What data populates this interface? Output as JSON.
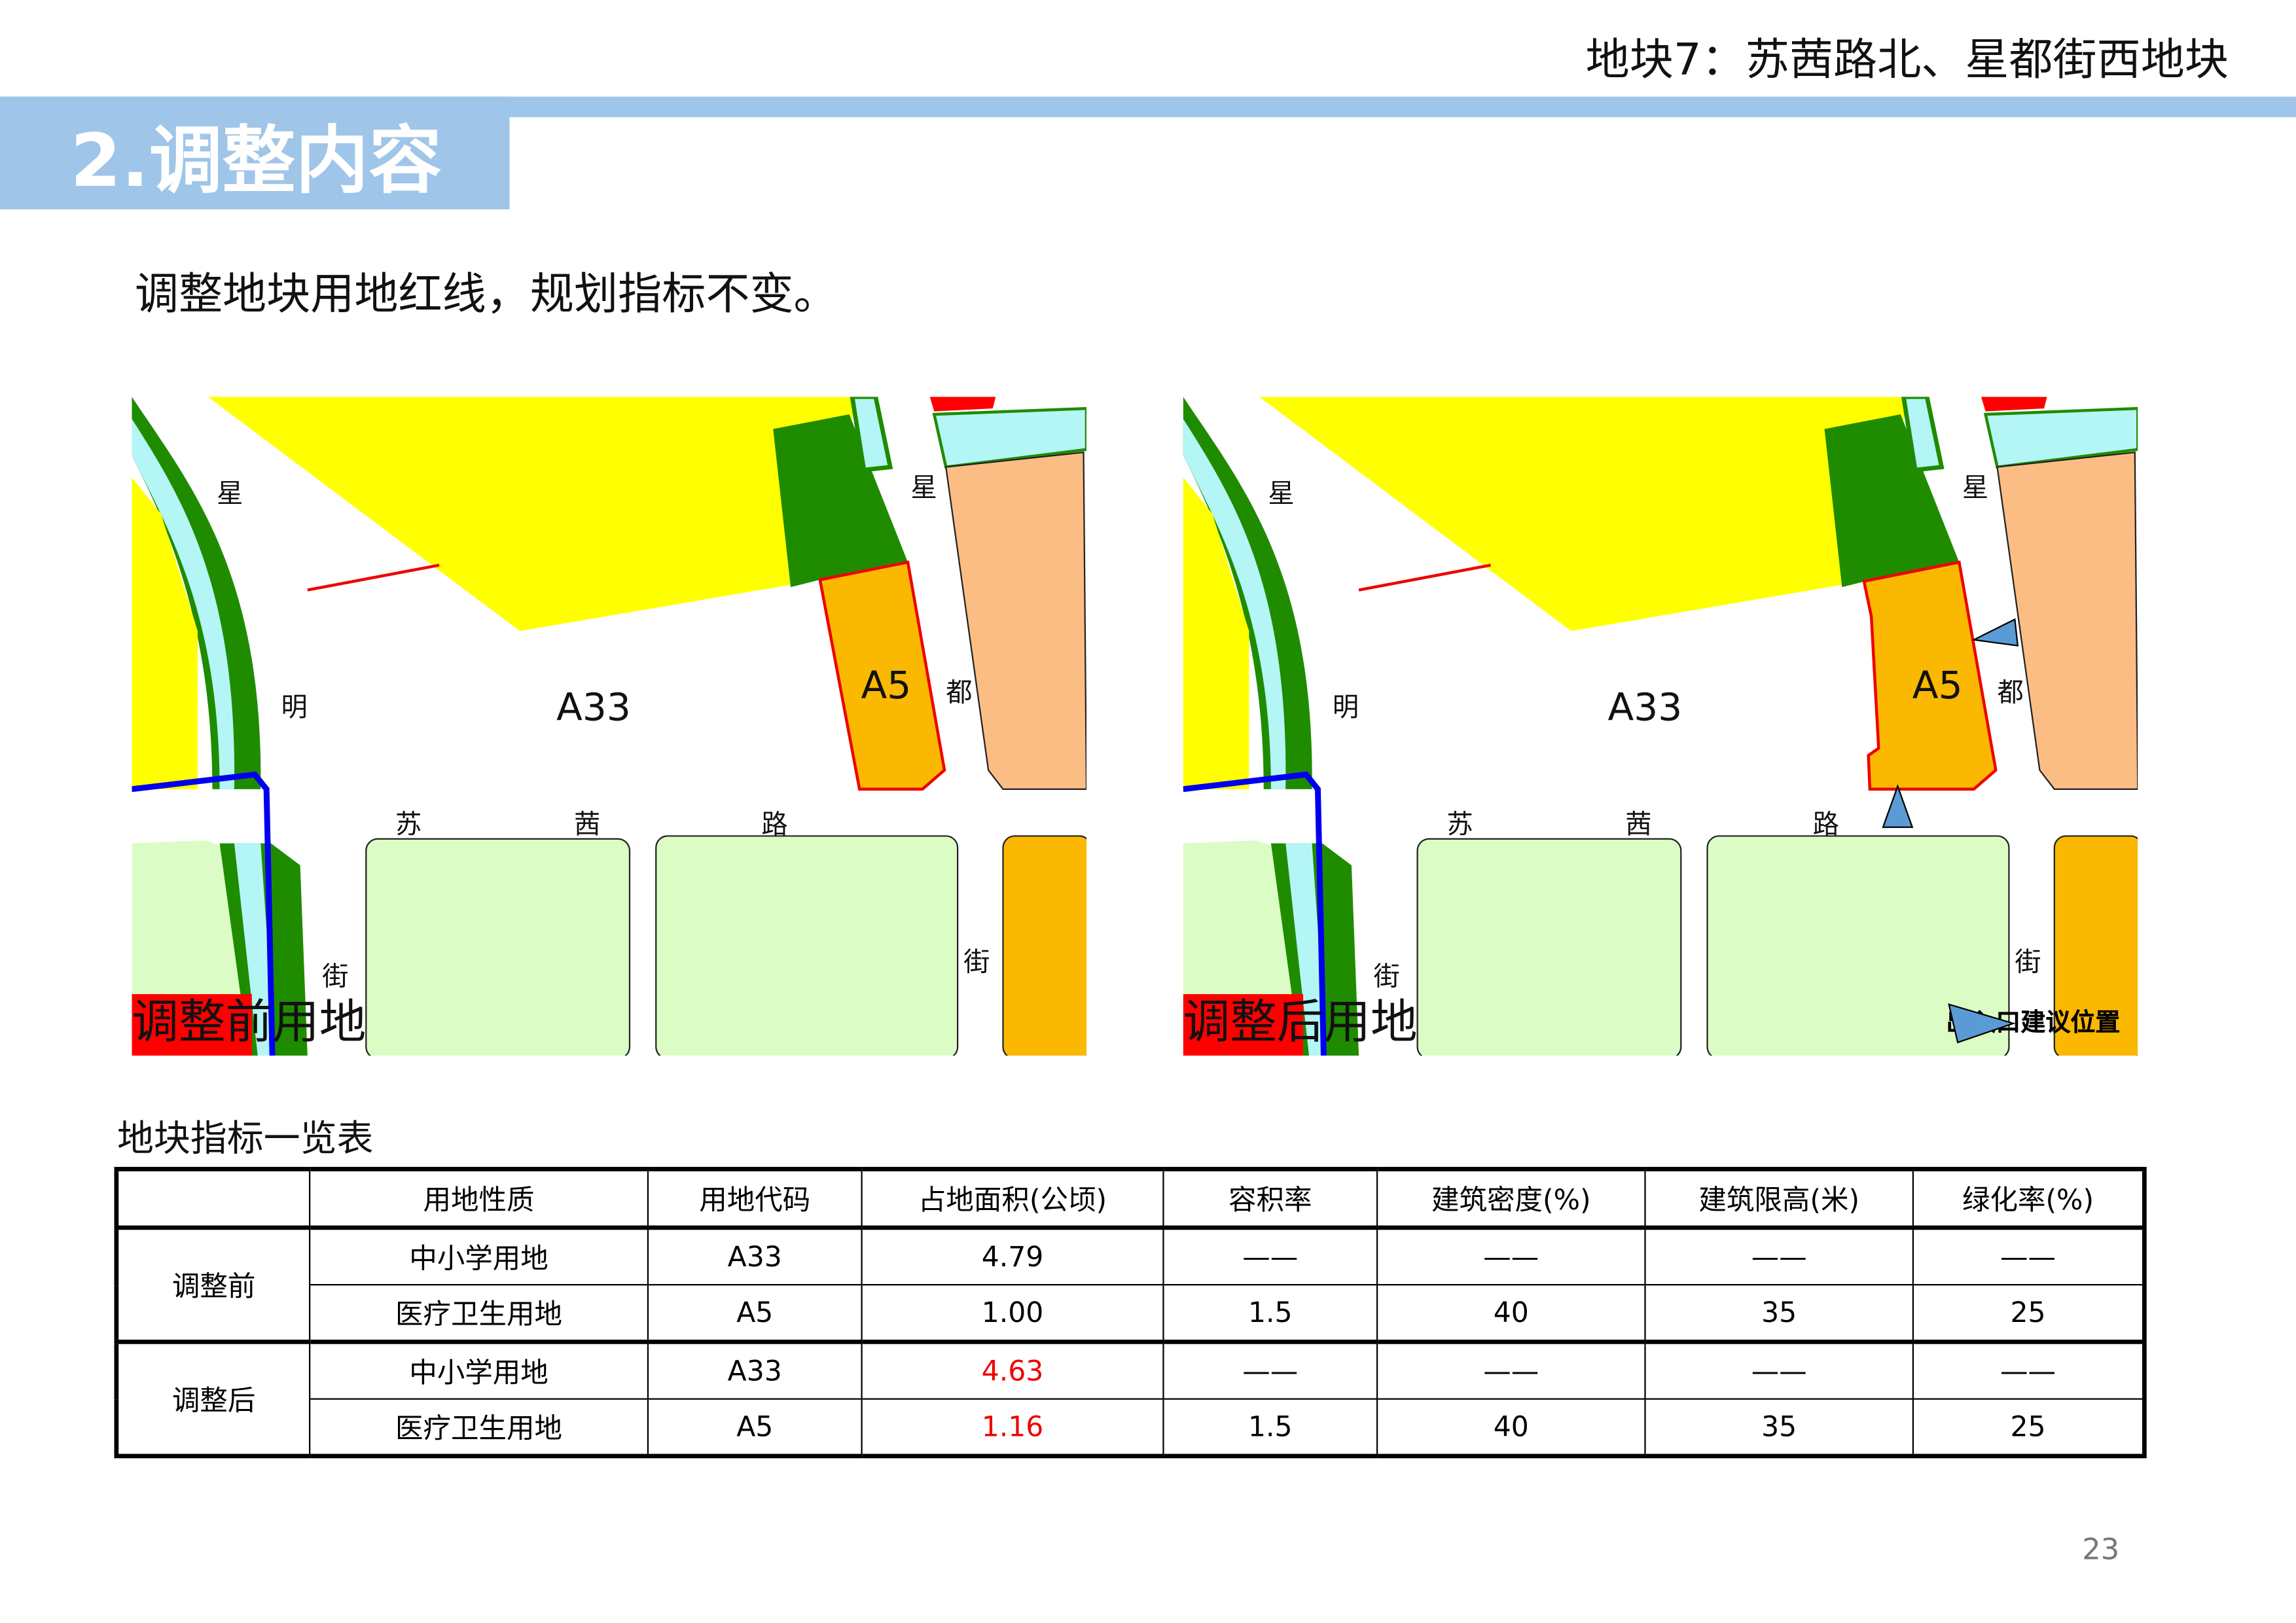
{
  "header": {
    "title": "地块7：苏茜路北、星都街西地块"
  },
  "section": {
    "title": "2.调整内容"
  },
  "subtitle": "调整地块用地红线，规划指标不变。",
  "colors": {
    "accent": "#9fc5e8",
    "school": "#fcbd84",
    "medical": "#fbb800",
    "yellow": "#ffff00",
    "green": "#1f8c00",
    "light_green": "#dcfcc6",
    "water": "#b4f5f5",
    "red": "#ff0000",
    "route": "#0000ee",
    "arrow": "#5b9bd5"
  },
  "maps": [
    {
      "caption": "调整前用地",
      "road_labels": {
        "xing1": "星",
        "ming": "明",
        "jie1": "街",
        "su": "苏",
        "qian": "茜",
        "lu": "路",
        "xing2": "星",
        "du": "都",
        "jie2": "街"
      },
      "codes": {
        "a33": "A33",
        "a5": "A5"
      }
    },
    {
      "caption": "调整后用地",
      "road_labels": {
        "xing1": "星",
        "ming": "明",
        "jie1": "街",
        "su": "苏",
        "qian": "茜",
        "lu": "路",
        "xing2": "星",
        "du": "都",
        "jie2": "街"
      },
      "codes": {
        "a33": "A33",
        "a5": "A5"
      },
      "legend": {
        "icon": "triangle-arrow-icon",
        "label": "出入口建议位置"
      }
    }
  ],
  "table": {
    "title": "地块指标一览表",
    "headers": [
      "",
      "用地性质",
      "用地代码",
      "占地面积(公顷)",
      "容积率",
      "建筑密度(%)",
      "建筑限高(米)",
      "绿化率(%)"
    ],
    "groups": [
      {
        "label": "调整前",
        "rows": [
          [
            "中小学用地",
            "A33",
            "4.79",
            "——",
            "——",
            "——",
            "——"
          ],
          [
            "医疗卫生用地",
            "A5",
            "1.00",
            "1.5",
            "40",
            "35",
            "25"
          ]
        ]
      },
      {
        "label": "调整后",
        "rows": [
          [
            "中小学用地",
            "A33",
            "4.63",
            "——",
            "——",
            "——",
            "——"
          ],
          [
            "医疗卫生用地",
            "A5",
            "1.16",
            "1.5",
            "40",
            "35",
            "25"
          ]
        ]
      }
    ]
  },
  "page_number": "23"
}
